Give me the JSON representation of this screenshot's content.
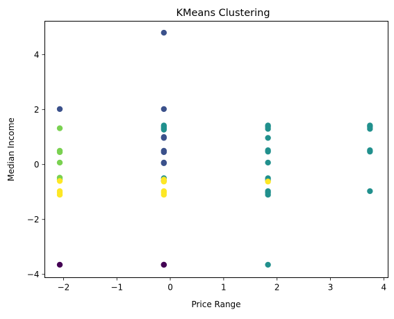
{
  "chart_data": {
    "type": "scatter",
    "title": "KMeans Clustering",
    "xlabel": "Price Range",
    "ylabel": "Median Income",
    "xlim": [
      -2.35,
      4.08
    ],
    "ylim": [
      -4.12,
      5.22
    ],
    "xticks": [
      {
        "value": -2,
        "label": "−2"
      },
      {
        "value": -1,
        "label": "−1"
      },
      {
        "value": 0,
        "label": "0"
      },
      {
        "value": 1,
        "label": "1"
      },
      {
        "value": 2,
        "label": "2"
      },
      {
        "value": 3,
        "label": "3"
      },
      {
        "value": 4,
        "label": "4"
      }
    ],
    "yticks": [
      {
        "value": -4,
        "label": "−4"
      },
      {
        "value": -2,
        "label": "−2"
      },
      {
        "value": 0,
        "label": "0"
      },
      {
        "value": 2,
        "label": "2"
      },
      {
        "value": 4,
        "label": "4"
      }
    ],
    "grid": false,
    "legend": "none",
    "cluster_colors": {
      "0": "#440154",
      "1": "#3b518b",
      "2": "#21908d",
      "3": "#7ad151",
      "4": "#fde725"
    },
    "points": [
      {
        "x": -2.07,
        "y": -3.65,
        "cluster": 0
      },
      {
        "x": -0.12,
        "y": -3.65,
        "cluster": 0
      },
      {
        "x": -0.12,
        "y": -3.65,
        "cluster": 0
      },
      {
        "x": -2.07,
        "y": 2.02,
        "cluster": 1
      },
      {
        "x": -0.12,
        "y": 4.8,
        "cluster": 1
      },
      {
        "x": -0.12,
        "y": 2.02,
        "cluster": 1
      },
      {
        "x": -0.12,
        "y": 1.0,
        "cluster": 1
      },
      {
        "x": -0.12,
        "y": 0.97,
        "cluster": 1
      },
      {
        "x": -0.12,
        "y": 0.5,
        "cluster": 1
      },
      {
        "x": -0.12,
        "y": 0.45,
        "cluster": 1
      },
      {
        "x": -0.12,
        "y": 0.07,
        "cluster": 1
      },
      {
        "x": -0.12,
        "y": 0.05,
        "cluster": 1
      },
      {
        "x": -0.12,
        "y": -0.6,
        "cluster": 1
      },
      {
        "x": -0.12,
        "y": 1.42,
        "cluster": 2
      },
      {
        "x": -0.12,
        "y": 1.37,
        "cluster": 2
      },
      {
        "x": -0.12,
        "y": 1.32,
        "cluster": 2
      },
      {
        "x": -0.12,
        "y": 1.27,
        "cluster": 2
      },
      {
        "x": -0.12,
        "y": -0.5,
        "cluster": 2
      },
      {
        "x": 1.83,
        "y": 1.42,
        "cluster": 2
      },
      {
        "x": 1.83,
        "y": 1.37,
        "cluster": 2
      },
      {
        "x": 1.83,
        "y": 1.3,
        "cluster": 2
      },
      {
        "x": 1.83,
        "y": 0.97,
        "cluster": 2
      },
      {
        "x": 1.83,
        "y": 0.52,
        "cluster": 2
      },
      {
        "x": 1.83,
        "y": 0.47,
        "cluster": 2
      },
      {
        "x": 1.83,
        "y": 0.07,
        "cluster": 2
      },
      {
        "x": 1.83,
        "y": -0.5,
        "cluster": 2
      },
      {
        "x": 1.83,
        "y": -0.57,
        "cluster": 2
      },
      {
        "x": 1.83,
        "y": -0.97,
        "cluster": 2
      },
      {
        "x": 1.83,
        "y": -1.03,
        "cluster": 2
      },
      {
        "x": 1.83,
        "y": -1.1,
        "cluster": 2
      },
      {
        "x": 1.83,
        "y": -3.65,
        "cluster": 2
      },
      {
        "x": 3.74,
        "y": 1.42,
        "cluster": 2
      },
      {
        "x": 3.74,
        "y": 1.37,
        "cluster": 2
      },
      {
        "x": 3.74,
        "y": 1.3,
        "cluster": 2
      },
      {
        "x": 3.74,
        "y": 0.52,
        "cluster": 2
      },
      {
        "x": 3.74,
        "y": 0.47,
        "cluster": 2
      },
      {
        "x": 3.74,
        "y": -0.97,
        "cluster": 2
      },
      {
        "x": -2.07,
        "y": 1.32,
        "cluster": 3
      },
      {
        "x": -2.07,
        "y": 0.5,
        "cluster": 3
      },
      {
        "x": -2.07,
        "y": 0.45,
        "cluster": 3
      },
      {
        "x": -2.07,
        "y": 0.07,
        "cluster": 3
      },
      {
        "x": -2.07,
        "y": -0.48,
        "cluster": 3
      },
      {
        "x": -2.07,
        "y": -0.55,
        "cluster": 3
      },
      {
        "x": -2.07,
        "y": -0.6,
        "cluster": 4
      },
      {
        "x": -2.07,
        "y": -0.97,
        "cluster": 4
      },
      {
        "x": -2.07,
        "y": -1.03,
        "cluster": 4
      },
      {
        "x": -2.07,
        "y": -1.1,
        "cluster": 4
      },
      {
        "x": -0.12,
        "y": -0.55,
        "cluster": 4
      },
      {
        "x": -0.12,
        "y": -0.62,
        "cluster": 4
      },
      {
        "x": -0.12,
        "y": -0.97,
        "cluster": 4
      },
      {
        "x": -0.12,
        "y": -1.03,
        "cluster": 4
      },
      {
        "x": -0.12,
        "y": -1.1,
        "cluster": 4
      },
      {
        "x": 1.83,
        "y": -0.62,
        "cluster": 4
      }
    ]
  }
}
